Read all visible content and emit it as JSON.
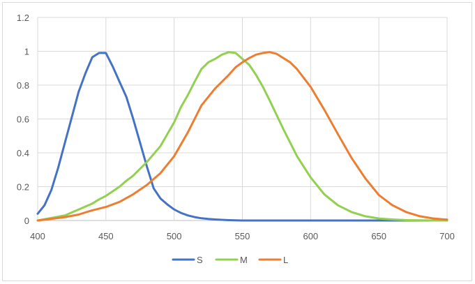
{
  "chart_data": {
    "type": "line",
    "title": "",
    "xlabel": "",
    "ylabel": "",
    "xlim": [
      400,
      700
    ],
    "ylim": [
      0,
      1.2
    ],
    "x_ticks": [
      400,
      450,
      500,
      550,
      600,
      650,
      700
    ],
    "y_ticks": [
      0,
      0.2,
      0.4,
      0.6,
      0.8,
      1,
      1.2
    ],
    "x_tick_labels": [
      "400",
      "450",
      "500",
      "550",
      "600",
      "650",
      "700"
    ],
    "y_tick_labels": [
      "0",
      "0.2",
      "0.4",
      "0.6",
      "0.8",
      "1",
      "1.2"
    ],
    "grid": true,
    "legend_position": "bottom",
    "series": [
      {
        "name": "S",
        "color": "#4472c4",
        "x": [
          400,
          405,
          410,
          415,
          420,
          425,
          430,
          435,
          440,
          445,
          450,
          455,
          460,
          465,
          470,
          475,
          480,
          485,
          490,
          495,
          500,
          505,
          510,
          515,
          520,
          525,
          530,
          535,
          540,
          545,
          550,
          560,
          570,
          580,
          590,
          600,
          620,
          650,
          700
        ],
        "y": [
          0.04,
          0.09,
          0.18,
          0.31,
          0.46,
          0.61,
          0.76,
          0.87,
          0.965,
          0.99,
          0.99,
          0.91,
          0.82,
          0.73,
          0.6,
          0.46,
          0.32,
          0.19,
          0.13,
          0.095,
          0.065,
          0.045,
          0.03,
          0.02,
          0.013,
          0.009,
          0.006,
          0.004,
          0.002,
          0.001,
          0,
          0,
          0,
          0,
          0,
          0,
          0,
          0,
          0
        ]
      },
      {
        "name": "M",
        "color": "#92d050",
        "x": [
          400,
          410,
          420,
          430,
          440,
          445,
          450,
          460,
          465,
          470,
          480,
          490,
          500,
          505,
          510,
          515,
          520,
          525,
          530,
          535,
          540,
          545,
          550,
          555,
          560,
          565,
          570,
          580,
          590,
          600,
          610,
          620,
          630,
          640,
          650,
          660,
          670,
          680,
          690,
          700
        ],
        "y": [
          0,
          0.015,
          0.03,
          0.065,
          0.1,
          0.125,
          0.145,
          0.2,
          0.235,
          0.265,
          0.345,
          0.44,
          0.58,
          0.67,
          0.74,
          0.82,
          0.895,
          0.935,
          0.955,
          0.98,
          0.995,
          0.99,
          0.955,
          0.92,
          0.86,
          0.79,
          0.71,
          0.54,
          0.38,
          0.255,
          0.155,
          0.09,
          0.05,
          0.025,
          0.012,
          0.006,
          0.002,
          0.001,
          0,
          0
        ]
      },
      {
        "name": "L",
        "color": "#ed7d31",
        "x": [
          400,
          410,
          420,
          430,
          440,
          450,
          460,
          470,
          480,
          490,
          500,
          510,
          520,
          530,
          540,
          545,
          550,
          555,
          560,
          565,
          570,
          575,
          580,
          585,
          590,
          600,
          610,
          620,
          630,
          640,
          650,
          660,
          670,
          680,
          690,
          700
        ],
        "y": [
          0,
          0.01,
          0.02,
          0.035,
          0.06,
          0.08,
          0.11,
          0.155,
          0.21,
          0.28,
          0.38,
          0.52,
          0.68,
          0.78,
          0.86,
          0.905,
          0.935,
          0.96,
          0.98,
          0.99,
          0.995,
          0.985,
          0.96,
          0.935,
          0.895,
          0.79,
          0.655,
          0.51,
          0.37,
          0.25,
          0.15,
          0.09,
          0.05,
          0.025,
          0.012,
          0.005
        ]
      }
    ]
  }
}
